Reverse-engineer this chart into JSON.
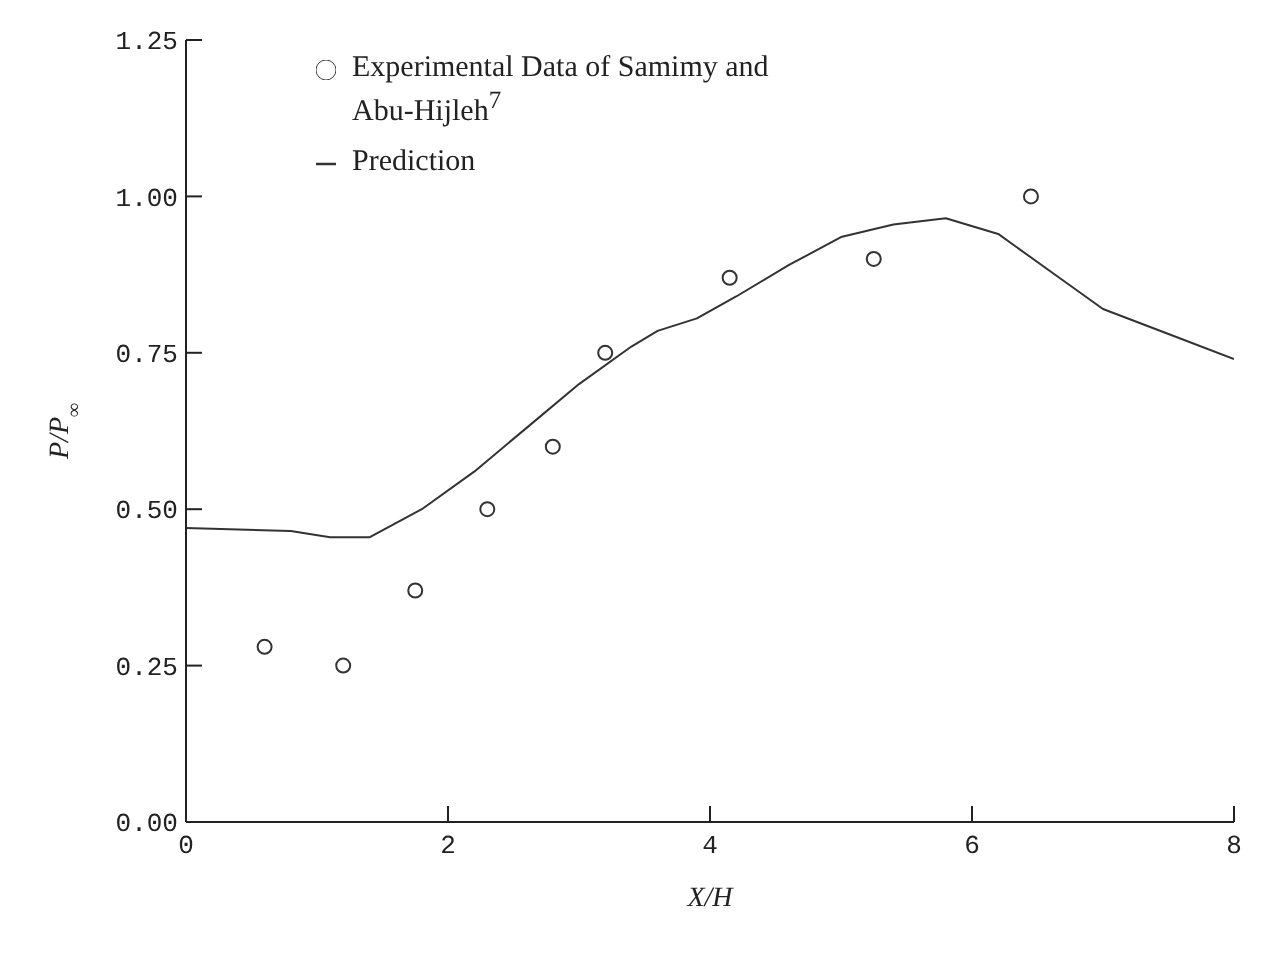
{
  "chart_data": {
    "type": "scatter",
    "xlabel": "X/H",
    "ylabel": "P/P$_{∞}$",
    "xlim": [
      0,
      8
    ],
    "xticks": [
      0,
      2,
      4,
      6,
      8
    ],
    "ylim": [
      0,
      1.25
    ],
    "yticks": [
      {
        "value": 0,
        "label": "0.00"
      },
      {
        "value": 0.25,
        "label": "0.25"
      },
      {
        "value": 0.5,
        "label": "0.50"
      },
      {
        "value": 0.75,
        "label": "0.75"
      },
      {
        "value": 1,
        "label": "1.00"
      },
      {
        "value": 1.25,
        "label": "1.25"
      }
    ],
    "grid": false,
    "legend": "top",
    "series": [
      {
        "name": "Experimental Data of Samimy and Abu-Hijleh$^{7}$",
        "color": "#333333",
        "marker": "circle",
        "x": [
          0.6,
          1.2,
          1.75,
          2.3,
          2.8,
          3.2,
          4.15,
          5.25,
          6.45
        ],
        "values": [
          0.28,
          0.25,
          0.37,
          0.5,
          0.6,
          0.75,
          0.87,
          0.9,
          1.0
        ]
      },
      {
        "name": "Prediction",
        "type": "line",
        "color": "#333333",
        "marker": "none",
        "line_style": "solid",
        "x": [
          0,
          0.8,
          1.1,
          1.4,
          1.8,
          2.2,
          2.6,
          3.0,
          3.4,
          3.6,
          3.9,
          4.2,
          4.6,
          5.0,
          5.4,
          5.8,
          6.2,
          6.6,
          7.0,
          7.5,
          8
        ],
        "values": [
          0.47,
          0.465,
          0.455,
          0.455,
          0.5,
          0.56,
          0.63,
          0.7,
          0.76,
          0.785,
          0.805,
          0.84,
          0.89,
          0.935,
          0.955,
          0.965,
          0.94,
          0.88,
          0.82,
          0.78,
          0.74
        ]
      }
    ]
  }
}
